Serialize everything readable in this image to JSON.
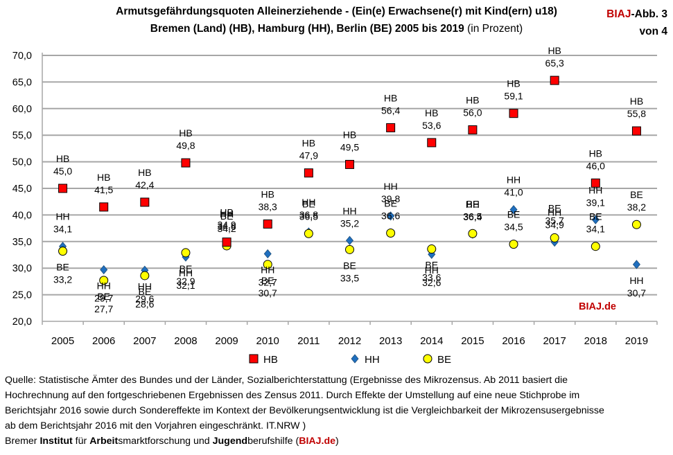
{
  "header": {
    "title_line1": "Armutsgefährdungsquoten Alleinerziehende - (Ein(e) Erwachsene(r) mit Kind(ern) u18)",
    "title_line2": "Bremen (Land) (HB), Hamburg (HH), Berlin (BE) 2005 bis 2019",
    "title_unit": "(in Prozent)",
    "figure_brand": "BIAJ",
    "figure_label": "-Abb. 3",
    "figure_of": "von 4"
  },
  "watermark": "BIAJ.de",
  "chart_data": {
    "type": "scatter",
    "title": "Armutsgefährdungsquoten Alleinerziehende - (Ein(e) Erwachsene(r) mit Kind(ern) u18) Bremen (Land) (HB), Hamburg (HH), Berlin (BE) 2005 bis 2019 (in Prozent)",
    "xlabel": "",
    "ylabel": "",
    "ylim": [
      20,
      70
    ],
    "ytick_step": 5,
    "yticks": [
      "20,0",
      "25,0",
      "30,0",
      "35,0",
      "40,0",
      "45,0",
      "50,0",
      "55,0",
      "60,0",
      "65,0",
      "70,0"
    ],
    "grid": true,
    "legend_position": "bottom",
    "categories": [
      "2005",
      "2006",
      "2007",
      "2008",
      "2009",
      "2010",
      "2011",
      "2012",
      "2013",
      "2014",
      "2015",
      "2016",
      "2017",
      "2018",
      "2019"
    ],
    "series": [
      {
        "name": "HB",
        "marker": "square",
        "color": "#ff0000",
        "values": [
          45.0,
          41.5,
          42.4,
          49.8,
          34.9,
          38.3,
          47.9,
          49.5,
          56.4,
          53.6,
          56.0,
          59.1,
          65.3,
          46.0,
          55.8
        ],
        "labels": [
          "45,0",
          "41,5",
          "42,4",
          "49,8",
          "34,9",
          "38,3",
          "47,9",
          "49,5",
          "56,4",
          "53,6",
          "56,0",
          "59,1",
          "65,3",
          "46,0",
          "55,8"
        ]
      },
      {
        "name": "HH",
        "marker": "diamond",
        "color": "#1f6fbf",
        "values": [
          34.1,
          29.7,
          29.6,
          32.1,
          34.6,
          32.7,
          36.8,
          35.2,
          39.8,
          32.6,
          36.4,
          41.0,
          34.9,
          39.1,
          30.7
        ],
        "labels": [
          "34,1",
          "29,7",
          "29,6",
          "32,1",
          "34,6",
          "32,7",
          "36,8",
          "35,2",
          "39,8",
          "32,6",
          "36,4",
          "41,0",
          "34,9",
          "39,1",
          "30,7"
        ]
      },
      {
        "name": "BE",
        "marker": "circle",
        "color": "#ffff00",
        "values": [
          33.2,
          27.7,
          28.6,
          32.9,
          34.2,
          30.7,
          36.5,
          33.5,
          36.6,
          33.6,
          36.5,
          34.5,
          35.7,
          34.1,
          38.2
        ],
        "labels": [
          "33,2",
          "27,7",
          "28,6",
          "32,9",
          "34,2",
          "30,7",
          "36,5",
          "33,5",
          "36,6",
          "33,6",
          "36,5",
          "34,5",
          "35,7",
          "34,1",
          "38,2"
        ]
      }
    ]
  },
  "source": {
    "lines": [
      "Quelle: Statistische Ämter des Bundes und der Länder, Sozialberichterstattung (Ergebnisse des  Mikrozensus. Ab 2011 basiert die",
      "Hochrechnung auf den fortgeschriebenen Ergebnissen des Zensus 2011. Durch Effekte der Umstellung auf eine neue Stichprobe im",
      "Berichtsjahr 2016 sowie durch Sondereffekte im Kontext der Bevölkerungsentwicklung ist die Vergleichbarkeit der Mikrozensusergebnisse",
      "ab dem Berichtsjahr 2016 mit den Vorjahren eingeschränkt. IT.NRW )"
    ],
    "credit": {
      "p1": "Bremer ",
      "b1": "Institut",
      "p2": " für ",
      "b2": "Arbeit",
      "p3": "smarktforschung und ",
      "b3": "Jugend",
      "p4": "berufshilfe (",
      "brand": "BIAJ.de",
      "p5": ")"
    }
  }
}
